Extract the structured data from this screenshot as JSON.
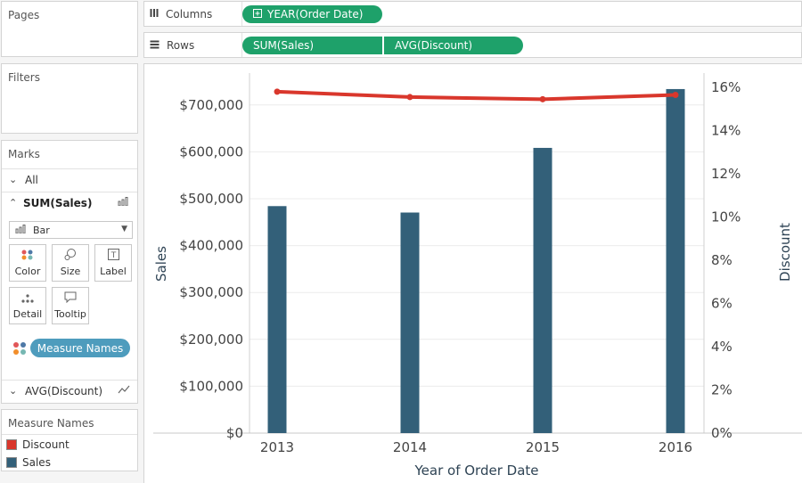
{
  "sidebar": {
    "pages_title": "Pages",
    "filters_title": "Filters",
    "marks": {
      "title": "Marks",
      "all_label": "All",
      "sum_sales_label": "SUM(Sales)",
      "mark_type": "Bar",
      "buttons": {
        "color": "Color",
        "size": "Size",
        "label": "Label",
        "detail": "Detail",
        "tooltip": "Tooltip"
      },
      "measure_names_pill": "Measure Names",
      "avg_discount_label": "AVG(Discount)"
    },
    "legend": {
      "title": "Measure Names",
      "items": [
        {
          "label": "Discount",
          "color": "#d9372c"
        },
        {
          "label": "Sales",
          "color": "#336079"
        }
      ]
    }
  },
  "shelves": {
    "columns_label": "Columns",
    "rows_label": "Rows",
    "columns_pill": "YEAR(Order Date)",
    "rows_pills": [
      "SUM(Sales)",
      "AVG(Discount)"
    ],
    "pill_color": "#1ea16a"
  },
  "chart_data": {
    "type": "bar",
    "categories": [
      "2013",
      "2014",
      "2015",
      "2016"
    ],
    "xlabel": "Year of Order Date",
    "series": [
      {
        "name": "Sales",
        "type": "bar",
        "axis": "left",
        "color": "#336079",
        "values": [
          484247,
          470533,
          608473,
          733947
        ]
      },
      {
        "name": "Discount",
        "type": "line",
        "axis": "right",
        "color": "#d9372c",
        "values": [
          0.158,
          0.1555,
          0.1545,
          0.1565
        ]
      }
    ],
    "y_left": {
      "label": "Sales",
      "range": [
        0,
        733947
      ],
      "ticks": [
        0,
        100000,
        200000,
        300000,
        400000,
        500000,
        600000,
        700000
      ],
      "tick_labels": [
        "$0",
        "$100,000",
        "$200,000",
        "$300,000",
        "$400,000",
        "$500,000",
        "$600,000",
        "$700,000"
      ]
    },
    "y_right": {
      "label": "Discount",
      "range": [
        0,
        0.16
      ],
      "ticks": [
        0,
        0.02,
        0.04,
        0.06,
        0.08,
        0.1,
        0.12,
        0.14,
        0.16
      ],
      "tick_labels": [
        "0%",
        "2%",
        "4%",
        "6%",
        "8%",
        "10%",
        "12%",
        "14%",
        "16%"
      ]
    },
    "grid": true
  }
}
